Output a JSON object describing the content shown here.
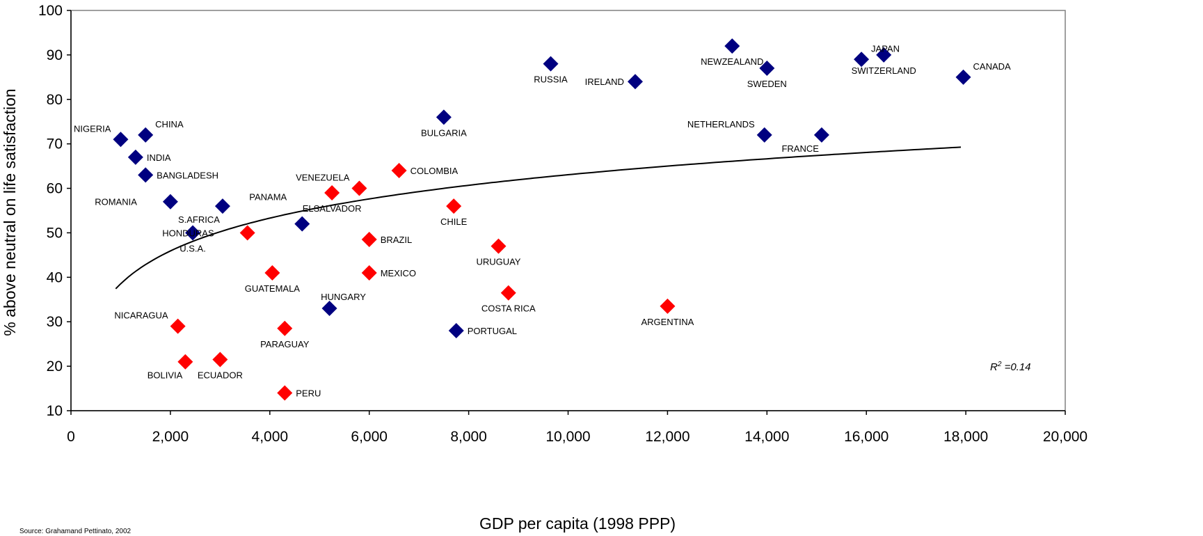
{
  "chart_data": {
    "type": "scatter",
    "xlabel": "GDP per capita (1998 PPP)",
    "ylabel": "% above neutral on life satisfaction",
    "xlim": [
      0,
      20000
    ],
    "ylim": [
      10,
      100
    ],
    "x_ticks": [
      0,
      2000,
      4000,
      6000,
      8000,
      10000,
      12000,
      14000,
      16000,
      18000,
      20000
    ],
    "x_tick_labels": [
      "0",
      "2,000",
      "4,000",
      "6,000",
      "8,000",
      "10,000",
      "12,000",
      "14,000",
      "16,000",
      "18,000",
      "20,000"
    ],
    "y_ticks": [
      10,
      20,
      30,
      40,
      50,
      60,
      70,
      80,
      90,
      100
    ],
    "y_tick_labels": [
      "10",
      "20",
      "30",
      "40",
      "50",
      "60",
      "70",
      "80",
      "90",
      "100"
    ],
    "grid": false,
    "annotation": {
      "r2_label": "R",
      "r2_sup": "2",
      "r2_value": " =0.14"
    },
    "source": "Source: Grahamand Pettinato, 2002",
    "colors": {
      "blue": "#000080",
      "red": "#ff0000",
      "trend": "#000000"
    },
    "trendline": {
      "type": "logarithmic",
      "x_range": [
        900,
        17900
      ]
    },
    "points": [
      {
        "label": "NIGERIA",
        "x": 1000,
        "y": 71,
        "color": "blue",
        "lpos": "upper-left"
      },
      {
        "label": "CHINA",
        "x": 1500,
        "y": 72,
        "color": "blue",
        "lpos": "upper-right"
      },
      {
        "label": "INDIA",
        "x": 1300,
        "y": 67,
        "color": "blue",
        "lpos": "right"
      },
      {
        "label": "BANGLADESH",
        "x": 1500,
        "y": 63,
        "color": "blue",
        "lpos": "right"
      },
      {
        "label": "ROMANIA",
        "x": 2000,
        "y": 57,
        "color": "blue",
        "lpos": "far-left"
      },
      {
        "label": "S.AFRICA",
        "x": 3050,
        "y": 56,
        "color": "blue",
        "lpos": "lower-left"
      },
      {
        "label": "PANAMA",
        "x": 4650,
        "y": 52,
        "color": "blue",
        "lpos": "upper-far-left"
      },
      {
        "label": "HUNGARY",
        "x": 5200,
        "y": 33,
        "color": "blue",
        "lpos": "above-right"
      },
      {
        "label": "BULGARIA",
        "x": 7500,
        "y": 76,
        "color": "blue",
        "lpos": "below"
      },
      {
        "label": "PORTUGAL",
        "x": 7750,
        "y": 28,
        "color": "blue",
        "lpos": "right"
      },
      {
        "label": "RUSSIA",
        "x": 9650,
        "y": 88,
        "color": "blue",
        "lpos": "below"
      },
      {
        "label": "IRELAND",
        "x": 11350,
        "y": 84,
        "color": "blue",
        "lpos": "left"
      },
      {
        "label": "NEWZEALAND",
        "x": 13300,
        "y": 92,
        "color": "blue",
        "lpos": "below"
      },
      {
        "label": "NETHERLANDS",
        "x": 13950,
        "y": 72,
        "color": "blue",
        "lpos": "upper-left"
      },
      {
        "label": "SWEDEN",
        "x": 14000,
        "y": 87,
        "color": "blue",
        "lpos": "below"
      },
      {
        "label": "FRANCE",
        "x": 15100,
        "y": 72,
        "color": "blue",
        "lpos": "lower-left"
      },
      {
        "label": "JAPAN",
        "x": 15900,
        "y": 89,
        "color": "blue",
        "lpos": "upper-right"
      },
      {
        "label": "SWITZERLAND",
        "x": 16350,
        "y": 90,
        "color": "blue",
        "lpos": "below"
      },
      {
        "label": "CANADA",
        "x": 17950,
        "y": 85,
        "color": "blue",
        "lpos": "upper-right"
      },
      {
        "label": "U.S.A.",
        "x": 2450,
        "y": 50,
        "color": "blue",
        "lpos": "below"
      },
      {
        "label": "HONDURAS",
        "x": 3550,
        "y": 50,
        "color": "red",
        "lpos": "far-left"
      },
      {
        "label": "GUATEMALA",
        "x": 4050,
        "y": 41,
        "color": "red",
        "lpos": "below"
      },
      {
        "label": "ELSALVADOR",
        "x": 5250,
        "y": 59,
        "color": "red",
        "lpos": "below"
      },
      {
        "label": "VENEZUELA",
        "x": 5800,
        "y": 60,
        "color": "red",
        "lpos": "upper-left"
      },
      {
        "label": "BRAZIL",
        "x": 6000,
        "y": 48.5,
        "color": "red",
        "lpos": "right"
      },
      {
        "label": "COLOMBIA",
        "x": 6600,
        "y": 64,
        "color": "red",
        "lpos": "right"
      },
      {
        "label": "MEXICO",
        "x": 6000,
        "y": 41,
        "color": "red",
        "lpos": "right"
      },
      {
        "label": "CHILE",
        "x": 7700,
        "y": 56,
        "color": "red",
        "lpos": "below"
      },
      {
        "label": "URUGUAY",
        "x": 8600,
        "y": 47,
        "color": "red",
        "lpos": "below"
      },
      {
        "label": "COSTA RICA",
        "x": 8800,
        "y": 36.5,
        "color": "red",
        "lpos": "below"
      },
      {
        "label": "ARGENTINA",
        "x": 12000,
        "y": 33.5,
        "color": "red",
        "lpos": "below"
      },
      {
        "label": "NICARAGUA",
        "x": 2150,
        "y": 29,
        "color": "red",
        "lpos": "upper-left"
      },
      {
        "label": "PARAGUAY",
        "x": 4300,
        "y": 28.5,
        "color": "red",
        "lpos": "below"
      },
      {
        "label": "BOLIVIA",
        "x": 2300,
        "y": 21,
        "color": "red",
        "lpos": "lower-left"
      },
      {
        "label": "ECUADOR",
        "x": 3000,
        "y": 21.5,
        "color": "red",
        "lpos": "below"
      },
      {
        "label": "PERU",
        "x": 4300,
        "y": 14,
        "color": "red",
        "lpos": "right"
      }
    ]
  }
}
